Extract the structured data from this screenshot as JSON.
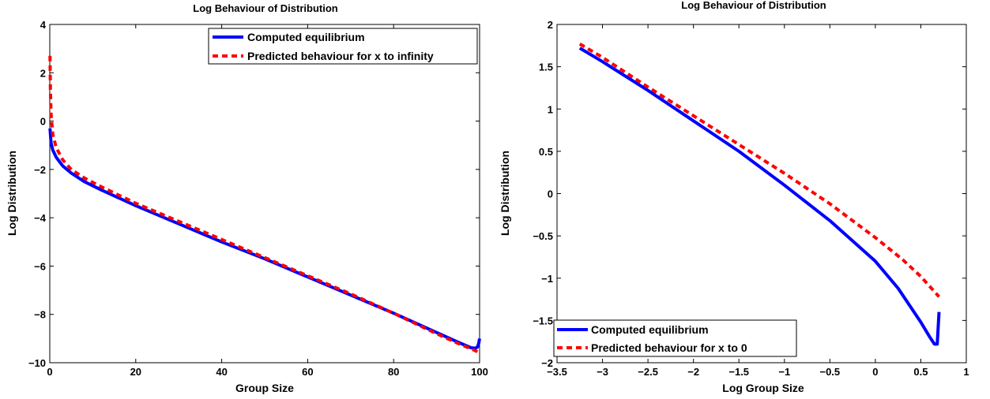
{
  "chart_data": [
    {
      "type": "line",
      "title": "Log Behaviour of Distribution",
      "xlabel": "Group Size",
      "ylabel": "Log Distribution",
      "xlim": [
        0,
        100
      ],
      "ylim": [
        -10,
        4
      ],
      "xticks": [
        0,
        20,
        40,
        60,
        80,
        100
      ],
      "yticks": [
        -10,
        -8,
        -6,
        -4,
        -2,
        0,
        2,
        4
      ],
      "xtick_labels": [
        "0",
        "20",
        "40",
        "60",
        "80",
        "100"
      ],
      "ytick_labels": [
        "−10",
        "−8",
        "−6",
        "−4",
        "−2",
        "0",
        "2",
        "4"
      ],
      "grid": false,
      "legend_position": "top-right",
      "series": [
        {
          "name": "Computed equilibrium",
          "color": "#0000ff",
          "style": "solid",
          "x": [
            0.05,
            0.3,
            0.7,
            1.5,
            3,
            5,
            8,
            12,
            20,
            30,
            40,
            50,
            60,
            70,
            80,
            90,
            95,
            98,
            99,
            99.5,
            99.8,
            100
          ],
          "y": [
            -0.3,
            -0.9,
            -1.2,
            -1.5,
            -1.85,
            -2.15,
            -2.5,
            -2.85,
            -3.5,
            -4.25,
            -5.0,
            -5.7,
            -6.45,
            -7.2,
            -7.95,
            -8.75,
            -9.15,
            -9.38,
            -9.4,
            -9.35,
            -9.2,
            -9.0
          ]
        },
        {
          "name": "Predicted behaviour for x to infinity",
          "color": "#ff0000",
          "style": "dashed",
          "x": [
            0.05,
            0.15,
            0.3,
            0.7,
            1.5,
            3,
            5,
            8,
            12,
            20,
            30,
            40,
            50,
            60,
            70,
            80,
            90,
            95,
            99,
            100
          ],
          "y": [
            2.7,
            1.3,
            0.3,
            -0.55,
            -1.1,
            -1.6,
            -2.0,
            -2.35,
            -2.72,
            -3.4,
            -4.15,
            -4.9,
            -5.65,
            -6.4,
            -7.15,
            -7.95,
            -8.8,
            -9.2,
            -9.5,
            -9.6
          ]
        }
      ]
    },
    {
      "type": "line",
      "title": "Log Behaviour of Distribution",
      "xlabel": "Log Group Size",
      "ylabel": "Log Distribution",
      "xlim": [
        -3.5,
        1
      ],
      "ylim": [
        -2,
        2
      ],
      "xticks": [
        -3.5,
        -3,
        -2.5,
        -2,
        -1.5,
        -1,
        -0.5,
        0,
        0.5,
        1
      ],
      "yticks": [
        -2,
        -1.5,
        -1,
        -0.5,
        0,
        0.5,
        1,
        1.5,
        2
      ],
      "xtick_labels": [
        "−3.5",
        "−3",
        "−2.5",
        "−2",
        "−1.5",
        "−1",
        "−0.5",
        "0",
        "0.5",
        "1"
      ],
      "ytick_labels": [
        "−2",
        "−1.5",
        "−1",
        "−0.5",
        "0",
        "0.5",
        "1",
        "1.5",
        "2"
      ],
      "grid": false,
      "legend_position": "bottom-left",
      "series": [
        {
          "name": "Computed equilibrium",
          "color": "#0000ff",
          "style": "solid",
          "x": [
            -3.25,
            -3,
            -2.5,
            -2,
            -1.5,
            -1,
            -0.5,
            0,
            0.25,
            0.5,
            0.6,
            0.65,
            0.68,
            0.69,
            0.7
          ],
          "y": [
            1.72,
            1.56,
            1.22,
            0.86,
            0.5,
            0.1,
            -0.32,
            -0.8,
            -1.12,
            -1.52,
            -1.7,
            -1.78,
            -1.78,
            -1.6,
            -1.4
          ]
        },
        {
          "name": "Predicted behaviour for x to 0",
          "color": "#ff0000",
          "style": "dashed",
          "x": [
            -3.25,
            -3,
            -2.5,
            -2,
            -1.5,
            -1,
            -0.5,
            0,
            0.3,
            0.5,
            0.7
          ],
          "y": [
            1.77,
            1.61,
            1.26,
            0.92,
            0.58,
            0.24,
            -0.12,
            -0.52,
            -0.78,
            -0.98,
            -1.22
          ]
        }
      ]
    }
  ]
}
